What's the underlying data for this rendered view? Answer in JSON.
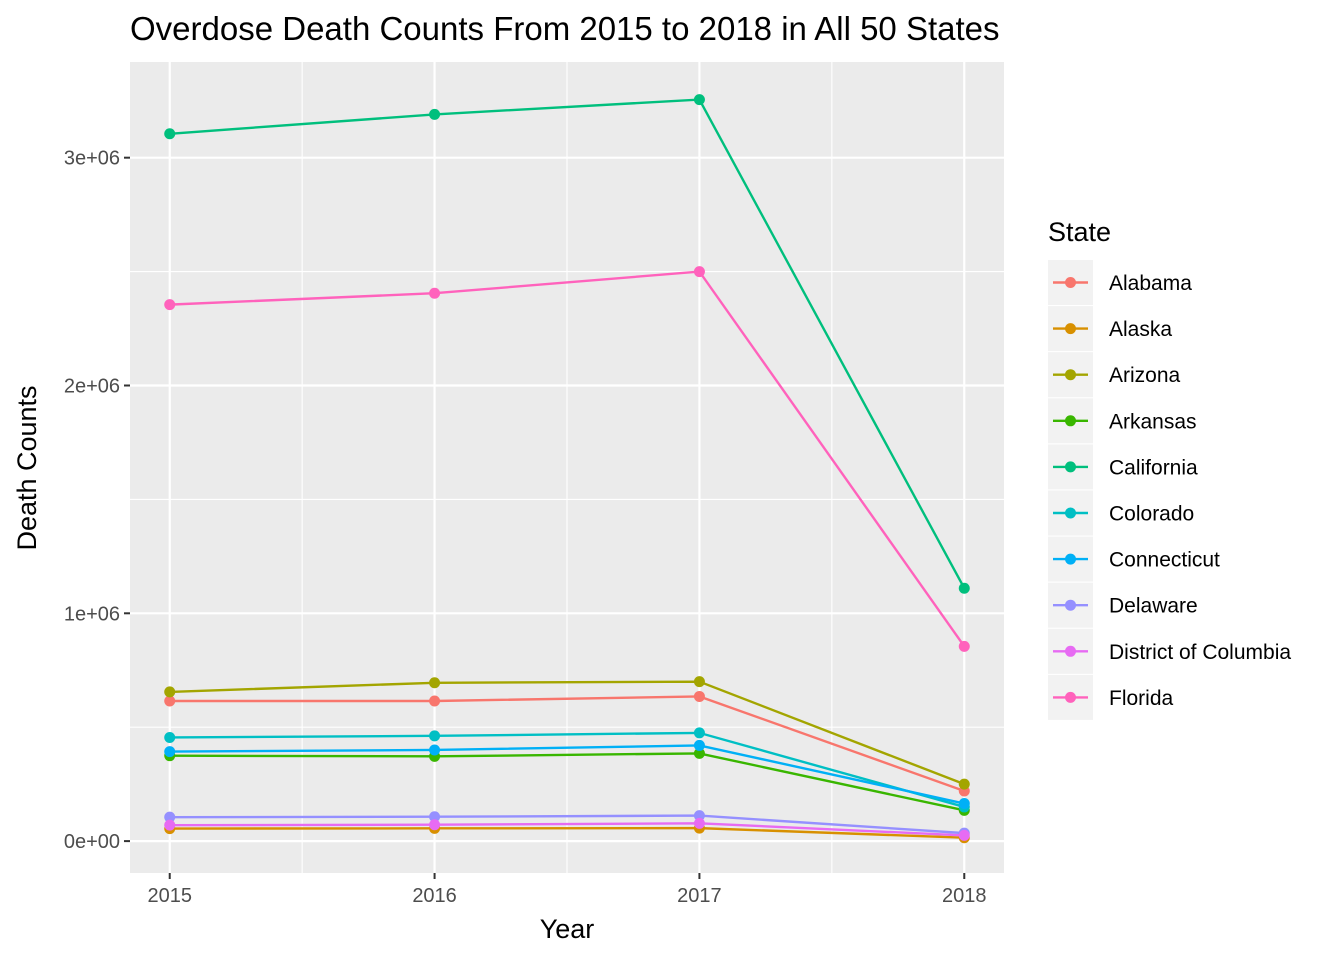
{
  "chart_data": {
    "type": "line",
    "title": "Overdose Death Counts From 2015 to 2018 in All 50 States",
    "xlabel": "Year",
    "ylabel": "Death Counts",
    "x": [
      2015,
      2016,
      2017,
      2018
    ],
    "x_tick_labels": [
      "2015",
      "2016",
      "2017",
      "2018"
    ],
    "y_ticks": [
      0,
      1000000,
      2000000,
      3000000
    ],
    "y_tick_labels": [
      "0e+00",
      "1e+06",
      "2e+06",
      "3e+06"
    ],
    "xlim": [
      2014.85,
      2018.15
    ],
    "ylim": [
      -140000,
      3420000
    ],
    "grid": true,
    "panel_background": "#ebebeb",
    "grid_color": "#ffffff",
    "markers": true,
    "legend": {
      "title": "State",
      "position": "right"
    },
    "series": [
      {
        "name": "Alabama",
        "color": "#F8766D",
        "values": [
          615000,
          615000,
          635000,
          220000
        ]
      },
      {
        "name": "Alaska",
        "color": "#D89000",
        "values": [
          55000,
          56000,
          57000,
          15000
        ]
      },
      {
        "name": "Arizona",
        "color": "#A3A500",
        "values": [
          655000,
          695000,
          700000,
          250000
        ]
      },
      {
        "name": "Arkansas",
        "color": "#39B600",
        "values": [
          375000,
          372000,
          385000,
          135000
        ]
      },
      {
        "name": "California",
        "color": "#00BF7D",
        "values": [
          3105000,
          3190000,
          3255000,
          1110000
        ]
      },
      {
        "name": "Colorado",
        "color": "#00BFC4",
        "values": [
          455000,
          462000,
          475000,
          150000
        ]
      },
      {
        "name": "Connecticut",
        "color": "#00B0F6",
        "values": [
          393000,
          400000,
          420000,
          165000
        ]
      },
      {
        "name": "Delaware",
        "color": "#9590FF",
        "values": [
          105000,
          107000,
          112000,
          35000
        ]
      },
      {
        "name": "District of Columbia",
        "color": "#E76BF3",
        "values": [
          70000,
          72000,
          78000,
          25000
        ]
      },
      {
        "name": "Florida",
        "color": "#FF62BC",
        "values": [
          2355000,
          2405000,
          2500000,
          855000
        ]
      }
    ]
  }
}
